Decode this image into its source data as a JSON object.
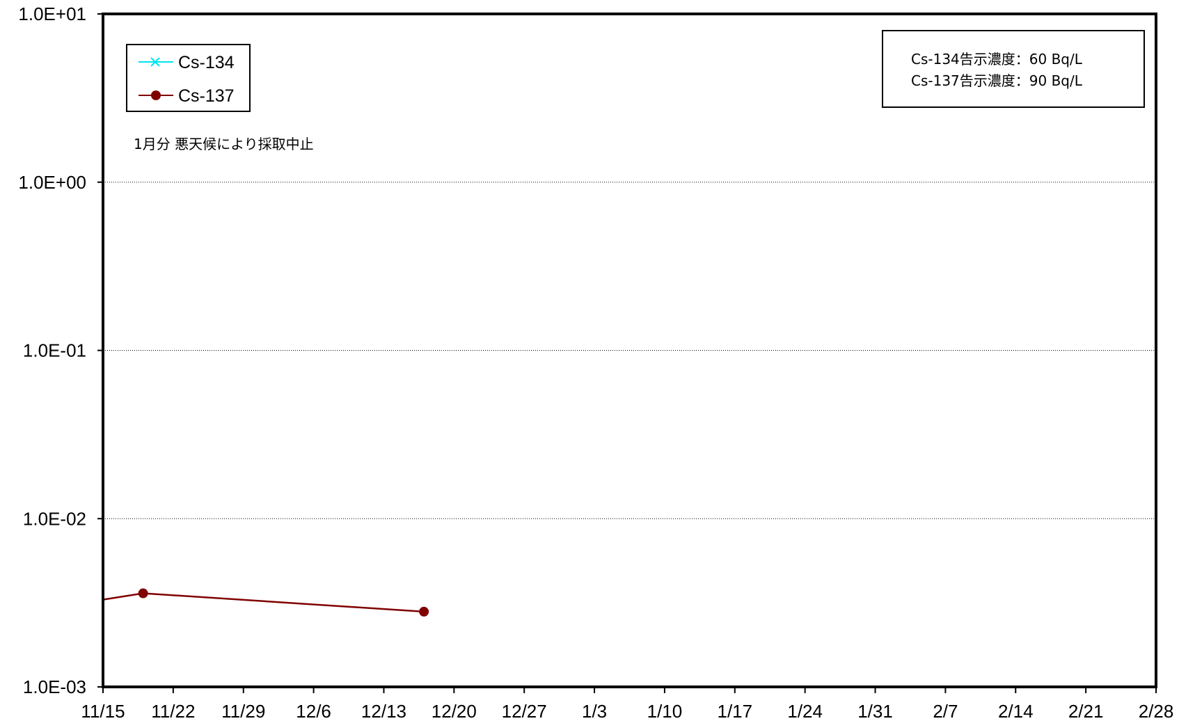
{
  "chart_data": {
    "type": "line",
    "title": "",
    "xlabel": "",
    "ylabel": "",
    "y_scale": "log",
    "ylim": [
      0.001,
      10
    ],
    "y_ticks": [
      "1.0E-03",
      "1.0E-02",
      "1.0E-01",
      "1.0E+00",
      "1.0E+01"
    ],
    "x_range": [
      "11/15",
      "2/28"
    ],
    "x_ticks": [
      "11/15",
      "11/22",
      "11/29",
      "12/6",
      "12/13",
      "12/20",
      "12/27",
      "1/3",
      "1/10",
      "1/17",
      "1/24",
      "1/31",
      "2/7",
      "2/14",
      "2/21",
      "2/28"
    ],
    "grid": "horizontal dotted at major y ticks",
    "legend_position": "top-left",
    "series": [
      {
        "name": "Cs-134",
        "color": "#00e5ee",
        "marker": "x",
        "points": []
      },
      {
        "name": "Cs-137",
        "color": "#800000",
        "marker": "circle",
        "points": [
          {
            "x": "11/15",
            "y": 0.0033,
            "marker": false
          },
          {
            "x": "11/19",
            "y": 0.0036,
            "marker": true
          },
          {
            "x": "12/17",
            "y": 0.0028,
            "marker": true
          }
        ]
      }
    ],
    "annotations": {
      "limits": [
        "Cs-134告示濃度：60  Bq/L",
        "Cs-137告示濃度：90  Bq/L"
      ],
      "note": "1月分  悪天候により採取中止"
    }
  }
}
